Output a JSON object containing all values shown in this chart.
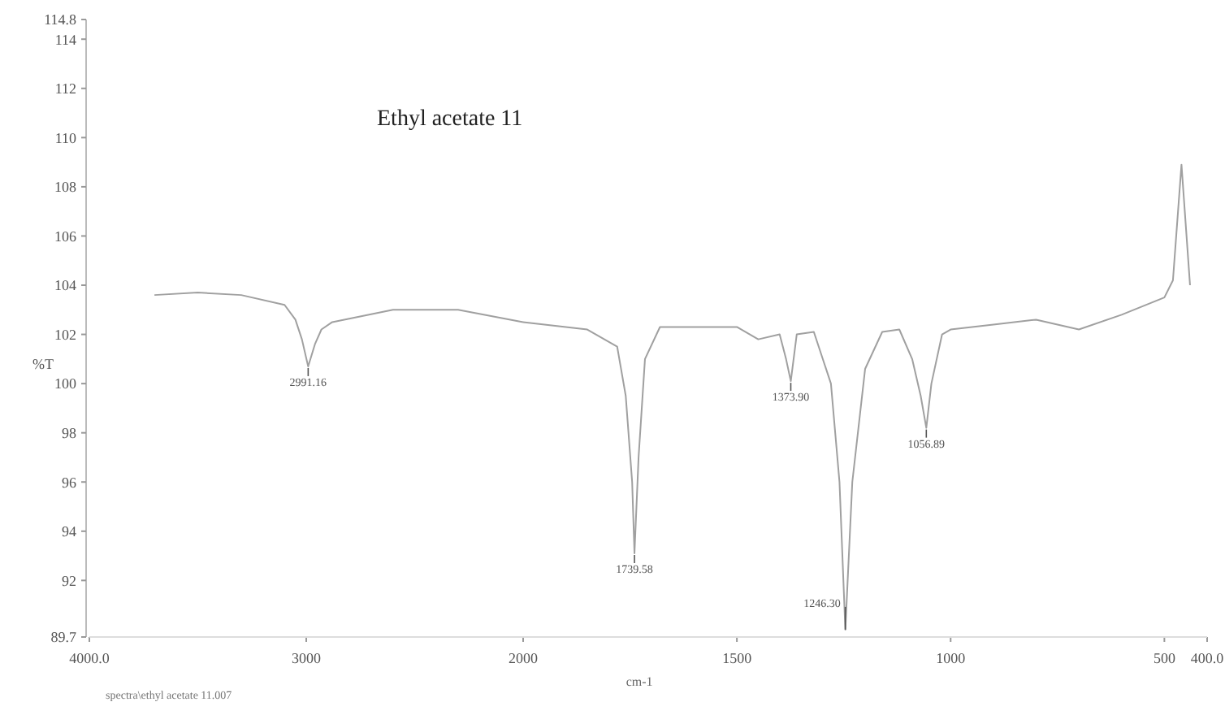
{
  "chart_data": [
    {
      "type": "line",
      "title": "Ethyl acetate 11",
      "ylabel": "%T",
      "xlim": [
        4000,
        2000
      ],
      "xticks": [
        {
          "value": 4000,
          "label": "4000.0"
        },
        3000,
        2000
      ],
      "ylim": [
        89.7,
        114.8
      ],
      "yticks": [
        89.7,
        92,
        94,
        96,
        98,
        100,
        102,
        104,
        106,
        108,
        110,
        112,
        114,
        114.8
      ],
      "series": [
        {
          "color": "#a0a0a0",
          "x": [
            3700,
            3500,
            3300,
            3100,
            3050,
            3020,
            2991.16,
            2960,
            2930,
            2880,
            2600,
            2300,
            2000
          ],
          "values": [
            103.6,
            103.7,
            103.6,
            103.2,
            102.6,
            101.8,
            100.7,
            101.6,
            102.2,
            102.5,
            103,
            103,
            102.5
          ]
        }
      ],
      "annotations": [
        {
          "text": "2991.16",
          "x": 2991.16,
          "y": 100.7
        },
        "spectra\\ethyl acetate 11.007"
      ]
    },
    {
      "type": "line",
      "xlabel": "cm-1",
      "tick_labels": "x",
      "xlim": [
        2000,
        400
      ],
      "xticks": [
        1500,
        1000,
        500,
        {
          "value": 400,
          "label": "400.0"
        }
      ],
      "ylim": [
        89.7,
        114.8
      ],
      "series": [
        {
          "color": "#a0a0a0",
          "x": [
            2000,
            1850,
            1780,
            1760,
            1745,
            1739.58,
            1730,
            1715,
            1680,
            1500,
            1450,
            1400,
            1385,
            1373.9,
            1360,
            1320,
            1280,
            1260,
            1246.3,
            1230,
            1200,
            1160,
            1120,
            1090,
            1070,
            1056.89,
            1045,
            1020,
            1000,
            900,
            800,
            700,
            600,
            500,
            480,
            460,
            440
          ],
          "values": [
            102.5,
            102.2,
            101.5,
            99.5,
            96,
            93.1,
            97,
            101,
            102.3,
            102.3,
            101.8,
            102,
            101,
            100.1,
            102,
            102.1,
            100,
            96,
            90,
            96,
            100.6,
            102.1,
            102.2,
            101,
            99.5,
            98.2,
            100,
            102,
            102.2,
            102.4,
            102.6,
            102.2,
            102.8,
            103.5,
            104.2,
            108.9,
            104
          ]
        }
      ],
      "annotations": [
        {
          "text": "1739.58",
          "x": 1739.58,
          "y": 93.1
        },
        {
          "text": "1373.90",
          "x": 1373.9,
          "y": 100.1
        },
        {
          "text": "1246.30",
          "x": 1246.3,
          "y": 90
        },
        {
          "text": "1056.89",
          "x": 1056.89,
          "y": 98.2
        }
      ]
    }
  ]
}
